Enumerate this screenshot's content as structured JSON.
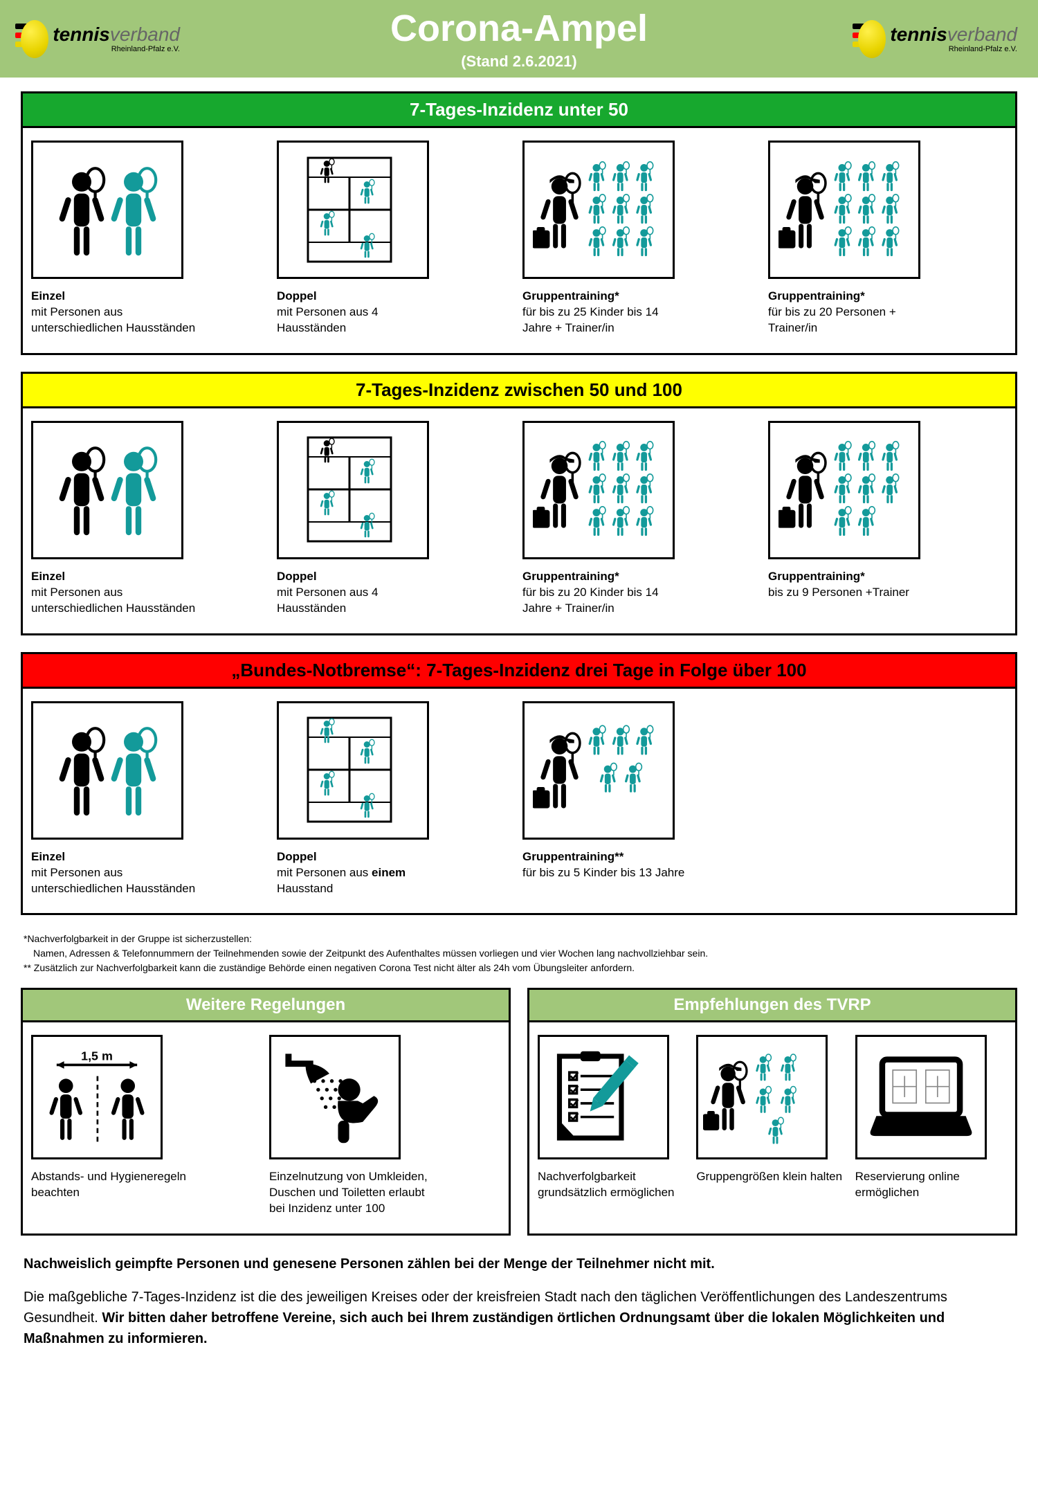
{
  "colors": {
    "header_bg": "#a1c77a",
    "green": "#17a82e",
    "yellow": "#ffff00",
    "red": "#ff0000",
    "olive": "#a1c77a",
    "teal": "#139a9a",
    "black": "#000000",
    "white": "#ffffff"
  },
  "logo": {
    "tennis": "tennis",
    "verband": "verband",
    "sub": "Rheinland-Pfalz e.V.",
    "stripe_colors": [
      "#000000",
      "#ff0000",
      "#e8d400"
    ]
  },
  "title": "Corona-Ampel",
  "subtitle": "(Stand 2.6.2021)",
  "sections": [
    {
      "bar_class": "bar-green",
      "heading": "7-Tages-Inzidenz unter 50",
      "cells": [
        {
          "icon": "einzel",
          "title": "Einzel",
          "desc": "mit Personen aus unterschiedlichen Hausständen"
        },
        {
          "icon": "doppel4",
          "title": "Doppel",
          "desc": "mit Personen aus 4 Hausständen"
        },
        {
          "icon": "group_large",
          "title": "Gruppentraining*",
          "desc": "für bis zu 25 Kinder bis 14 Jahre + Trainer/in"
        },
        {
          "icon": "group_large",
          "title": "Gruppentraining*",
          "desc": "für bis zu 20 Personen + Trainer/in"
        }
      ]
    },
    {
      "bar_class": "bar-yellow",
      "heading": "7-Tages-Inzidenz zwischen 50 und 100",
      "cells": [
        {
          "icon": "einzel",
          "title": "Einzel",
          "desc": "mit Personen aus unterschiedlichen Hausständen"
        },
        {
          "icon": "doppel4",
          "title": "Doppel",
          "desc": "mit Personen aus 4 Hausständen"
        },
        {
          "icon": "group_large",
          "title": "Gruppentraining*",
          "desc": "für bis zu 20 Kinder bis 14 Jahre + Trainer/in"
        },
        {
          "icon": "group_med",
          "title": "Gruppentraining*",
          "desc": "bis zu 9 Personen +Trainer"
        }
      ]
    },
    {
      "bar_class": "bar-red",
      "heading": "„Bundes-Notbremse“: 7-Tages-Inzidenz drei Tage in Folge über 100",
      "cells": [
        {
          "icon": "einzel",
          "title": "Einzel",
          "desc": "mit Personen aus unterschiedlichen Hausständen"
        },
        {
          "icon": "doppel1",
          "title": "Doppel",
          "desc_html": "mit Personen aus <b>einem</b> Hausstand"
        },
        {
          "icon": "group_small",
          "title": "Gruppentraining**",
          "desc": "für bis zu 5 Kinder bis 13 Jahre"
        }
      ]
    }
  ],
  "footnotes": {
    "l1": "*Nachverfolgbarkeit in der Gruppe ist sicherzustellen:",
    "l2": "Namen, Adressen & Telefonnummern der Teilnehmenden sowie der Zeitpunkt des Aufenthaltes müssen vorliegen und vier Wochen lang nachvollziehbar sein.",
    "l3": "** Zusätzlich zur Nachverfolgbarkeit kann die zuständige Behörde einen negativen Corona Test nicht älter als 24h vom Übungsleiter anfordern."
  },
  "bottom_sections": [
    {
      "heading": "Weitere Regelungen",
      "cells": [
        {
          "icon": "distance",
          "caption": "Abstands- und Hygieneregeln beachten"
        },
        {
          "icon": "shower",
          "caption": "Einzelnutzung von Umkleiden, Duschen und Toiletten erlaubt bei Inzidenz unter 100"
        }
      ]
    },
    {
      "heading": "Empfehlungen des TVRP",
      "cells": [
        {
          "icon": "clipboard",
          "caption": "Nachverfolgbarkeit grundsätzlich ermöglichen"
        },
        {
          "icon": "group_tiny",
          "caption": "Gruppengrößen klein halten"
        },
        {
          "icon": "laptop",
          "caption": "Reservierung online ermöglichen"
        }
      ]
    }
  ],
  "distance_label": "1,5 m",
  "bottom_text": {
    "lead": "Nachweislich geimpfte Personen und genesene Personen zählen bei der Menge der Teilnehmer nicht mit.",
    "p1": "Die maßgebliche 7-Tages-Inzidenz ist die des jeweiligen Kreises oder der kreisfreien Stadt nach den täglichen Veröffentlichungen des Landeszentrums Gesundheit. ",
    "p1b": "Wir bitten daher betroffene Vereine, sich auch bei Ihrem zuständigen örtlichen Ordnungsamt über die lokalen Möglichkeiten und Maßnahmen zu informieren."
  }
}
